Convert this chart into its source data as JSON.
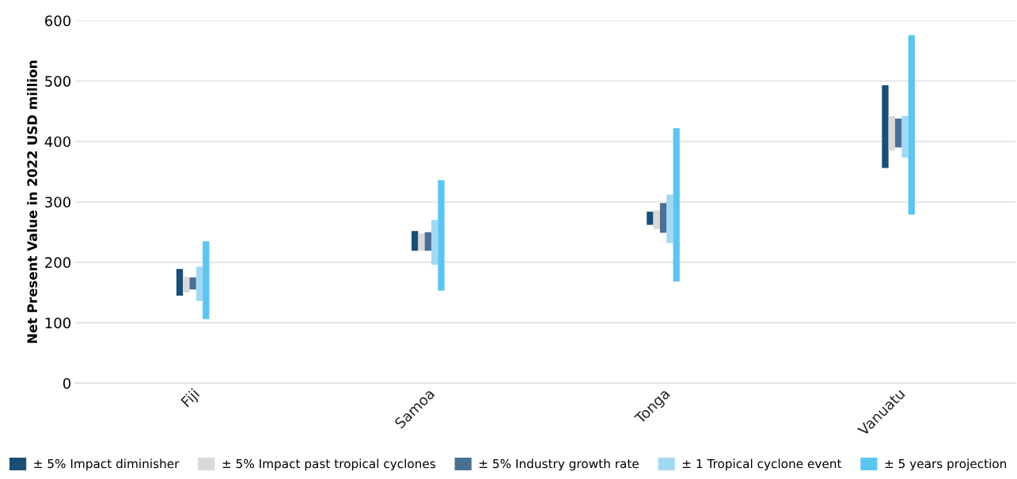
{
  "chart_data": {
    "type": "bar",
    "ylabel": "Net Present Value in 2022 USD million",
    "categories": [
      "Fiji",
      "Samoa",
      "Tonga",
      "Vanuatu"
    ],
    "series": [
      {
        "name": "± 5% Impact diminisher",
        "color": "#1a4e74",
        "base": [
          145,
          219,
          262,
          356
        ],
        "values": [
          44,
          33,
          22,
          137
        ]
      },
      {
        "name": "± 5% Impact past tropical cyclones",
        "color": "#d9d9d9",
        "base": [
          150,
          219,
          255,
          385
        ],
        "values": [
          26,
          29,
          31,
          57
        ]
      },
      {
        "name": "± 5% Industry growth rate",
        "color": "#4a7096",
        "base": [
          155,
          219,
          249,
          390
        ],
        "values": [
          20,
          31,
          49,
          48
        ]
      },
      {
        "name": "± 1 Tropical cyclone event",
        "color": "#a3d8f5",
        "base": [
          136,
          196,
          232,
          373
        ],
        "values": [
          57,
          74,
          80,
          69
        ]
      },
      {
        "name": "± 5 years projection",
        "color": "#5bc5f0",
        "base": [
          106,
          153,
          168,
          279
        ],
        "values": [
          129,
          183,
          254,
          297
        ]
      }
    ],
    "ylim": [
      0,
      600
    ],
    "yticks": [
      0,
      100,
      200,
      300,
      400,
      500,
      600
    ],
    "grid": "y",
    "legend": "bottom"
  }
}
